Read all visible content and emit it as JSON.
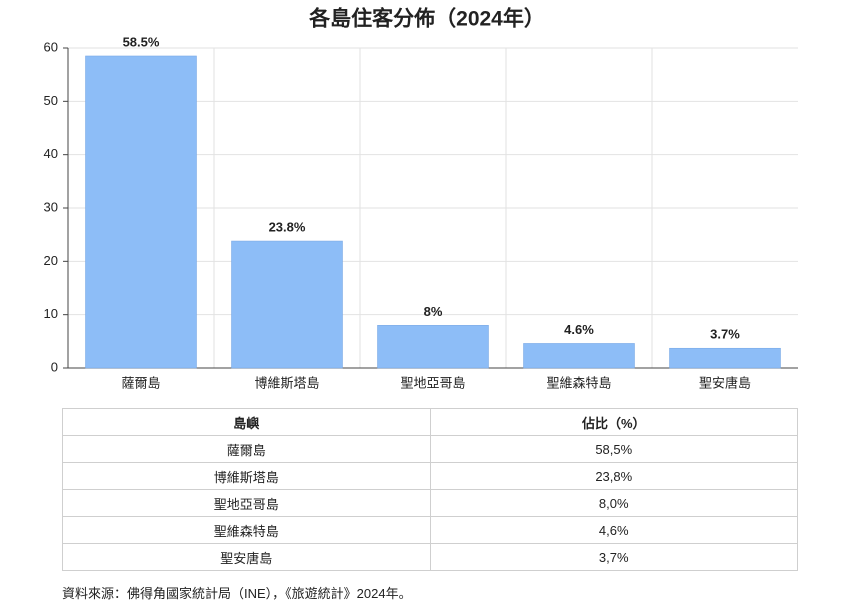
{
  "chart_data": {
    "type": "bar",
    "title": "各島住客分佈（2024年）",
    "categories": [
      "薩爾島",
      "博維斯塔島",
      "聖地亞哥島",
      "聖維森特島",
      "聖安唐島"
    ],
    "values": [
      58.5,
      23.8,
      8,
      4.6,
      3.7
    ],
    "value_labels": [
      "58.5%",
      "23.8%",
      "8%",
      "4.6%",
      "3.7%"
    ],
    "color": "#8dbdf7",
    "ylim": [
      0,
      60
    ],
    "yticks": [
      0,
      10,
      20,
      30,
      40,
      50,
      60
    ],
    "grid": true
  },
  "table": {
    "header": [
      "島嶼",
      "佔比（%）"
    ],
    "rows": [
      [
        "薩爾島",
        "58,5%"
      ],
      [
        "博維斯塔島",
        "23,8%"
      ],
      [
        "聖地亞哥島",
        "8,0%"
      ],
      [
        "聖維森特島",
        "4,6%"
      ],
      [
        "聖安唐島",
        "3,7%"
      ]
    ]
  },
  "source": "資料來源：佛得角國家統計局（INE），《旅遊統計》2024年。"
}
